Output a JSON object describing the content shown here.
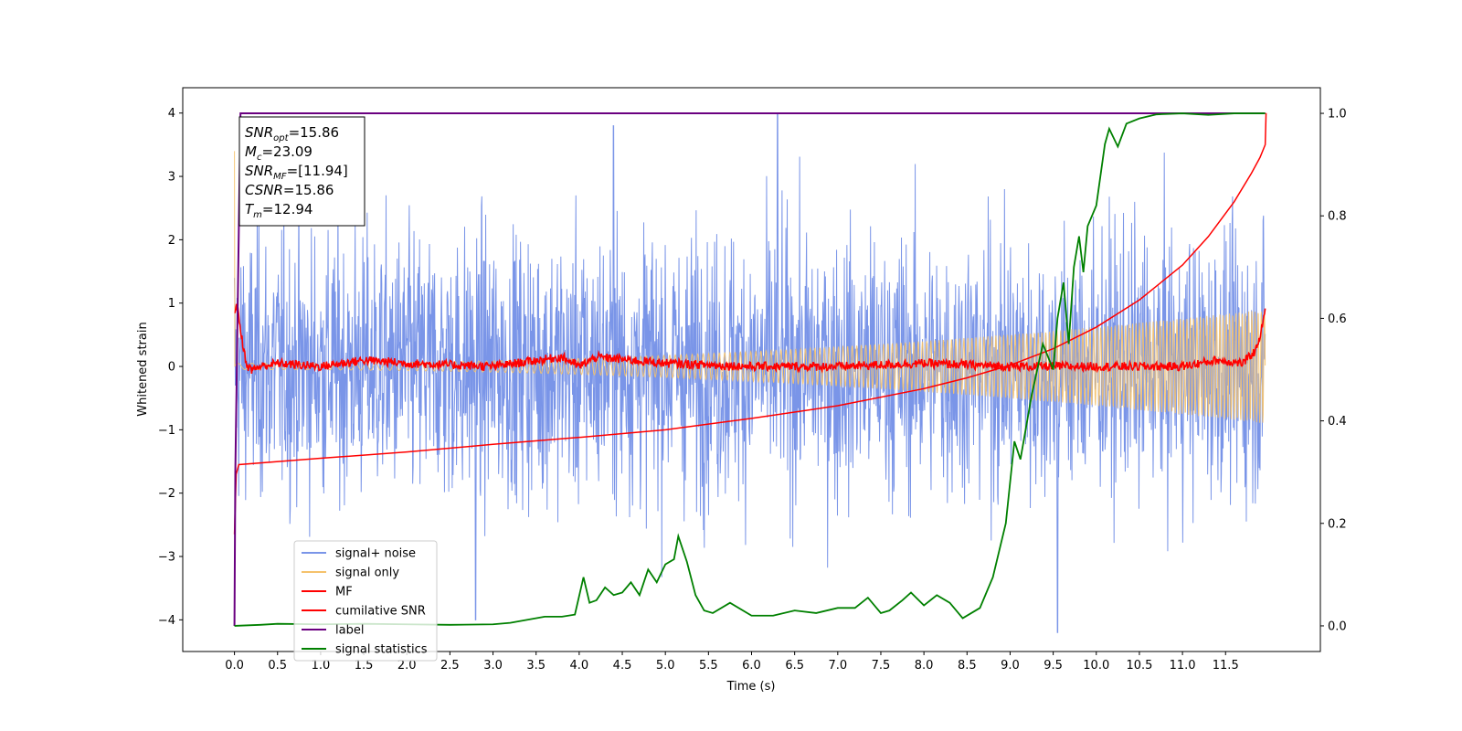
{
  "chart_data": {
    "type": "line",
    "xlabel": "Time (s)",
    "ylabel": "Whitened strain",
    "xlim": [
      -0.6,
      12.6
    ],
    "ylim": [
      -4.5,
      4.4
    ],
    "y2lim": [
      -0.05,
      1.05
    ],
    "x_ticks": [
      0.0,
      0.5,
      1.0,
      1.5,
      2.0,
      2.5,
      3.0,
      3.5,
      4.0,
      4.5,
      5.0,
      5.5,
      6.0,
      6.5,
      7.0,
      7.5,
      8.0,
      8.5,
      9.0,
      9.5,
      10.0,
      10.5,
      11.0,
      11.5
    ],
    "x_tick_labels": [
      "0.0",
      "0.5",
      "1.0",
      "1.5",
      "2.0",
      "2.5",
      "3.0",
      "3.5",
      "4.0",
      "4.5",
      "5.0",
      "5.5",
      "6.0",
      "6.5",
      "7.0",
      "7.5",
      "8.0",
      "8.5",
      "9.0",
      "9.5",
      "10.0",
      "10.5",
      "11.0",
      "11.5"
    ],
    "y_ticks": [
      -4,
      -3,
      -2,
      -1,
      0,
      1,
      2,
      3,
      4
    ],
    "y_tick_labels": [
      "−4",
      "−3",
      "−2",
      "−1",
      "0",
      "1",
      "2",
      "3",
      "4"
    ],
    "y2_ticks": [
      0.0,
      0.2,
      0.4,
      0.6,
      0.8,
      1.0
    ],
    "y2_tick_labels": [
      "0.0",
      "0.2",
      "0.4",
      "0.6",
      "0.8",
      "1.0"
    ],
    "legend": {
      "placement": "lower-left",
      "entries": [
        {
          "name": "signal+ noise",
          "color": "#7a95e8"
        },
        {
          "name": "signal only",
          "color": "#f5c26b"
        },
        {
          "name": "MF",
          "color": "#ff0000"
        },
        {
          "name": "cumilative SNR",
          "color": "#ff0000"
        },
        {
          "name": "label",
          "color": "#6a0080"
        },
        {
          "name": "signal statistics",
          "color": "#008000"
        }
      ]
    },
    "annotation": {
      "lines": [
        {
          "main": "SNR",
          "sub": "opt",
          "rest": "=15.86"
        },
        {
          "main": "M",
          "sub": "c",
          "rest": "=23.09"
        },
        {
          "main": "SNR",
          "sub": "MF",
          "rest": "=[11.94]"
        },
        {
          "main": "CSNR",
          "sub": "",
          "rest": "=15.86"
        },
        {
          "main": "T",
          "sub": "m",
          "rest": "=12.94"
        }
      ]
    },
    "series": [
      {
        "name": "signal+ noise",
        "axis": "left",
        "style": "noise",
        "x_range": [
          0.0,
          11.96
        ],
        "amplitude_envelope": 3.5,
        "peaks": [
          {
            "x": 4.4,
            "y": 3.8
          },
          {
            "x": 6.3,
            "y": 4.0
          },
          {
            "x": 9.55,
            "y": -4.2
          },
          {
            "x": 2.8,
            "y": -4.0
          }
        ]
      },
      {
        "name": "signal only",
        "axis": "left",
        "style": "chirp",
        "x_range": [
          0.0,
          11.96
        ],
        "start_spike": 3.4,
        "end_amplitude": 0.85
      },
      {
        "name": "MF",
        "axis": "left",
        "x": [
          0.0,
          0.03,
          0.06,
          0.1,
          0.15,
          0.2,
          0.3,
          0.5,
          1.0,
          1.5,
          2.0,
          3.0,
          3.8,
          4.0,
          4.2,
          5.0,
          6.0,
          7.0,
          8.0,
          9.0,
          10.0,
          11.0,
          11.4,
          11.7,
          11.85,
          11.92,
          11.96
        ],
        "y": [
          0.9,
          0.95,
          0.7,
          0.3,
          0.0,
          -0.05,
          0.0,
          0.05,
          0.0,
          0.1,
          0.05,
          0.0,
          0.15,
          0.0,
          0.15,
          0.05,
          0.0,
          0.0,
          0.05,
          0.0,
          0.0,
          0.0,
          0.1,
          0.05,
          0.25,
          0.6,
          0.95
        ]
      },
      {
        "name": "cumilative SNR",
        "axis": "left",
        "x": [
          0.0,
          0.02,
          0.05,
          1.0,
          2.0,
          3.0,
          4.0,
          5.0,
          6.0,
          7.0,
          8.0,
          8.5,
          9.0,
          9.5,
          10.0,
          10.5,
          11.0,
          11.3,
          11.6,
          11.8,
          11.9,
          11.96,
          11.97
        ],
        "y": [
          -2.65,
          -1.7,
          -1.55,
          -1.45,
          -1.35,
          -1.23,
          -1.12,
          -1.0,
          -0.82,
          -0.62,
          -0.35,
          -0.18,
          0.02,
          0.28,
          0.62,
          1.05,
          1.6,
          2.05,
          2.6,
          3.05,
          3.3,
          3.5,
          4.0
        ]
      },
      {
        "name": "label",
        "axis": "right",
        "x": [
          0.0,
          0.01,
          0.07,
          11.96
        ],
        "y": [
          0.0,
          0.3,
          1.0,
          1.0
        ]
      },
      {
        "name": "signal statistics",
        "axis": "right",
        "x": [
          0.0,
          0.3,
          0.5,
          1.0,
          1.5,
          2.0,
          2.5,
          3.0,
          3.2,
          3.4,
          3.6,
          3.8,
          3.95,
          4.05,
          4.12,
          4.2,
          4.3,
          4.4,
          4.5,
          4.6,
          4.7,
          4.8,
          4.9,
          5.0,
          5.1,
          5.15,
          5.25,
          5.35,
          5.45,
          5.55,
          5.75,
          6.0,
          6.25,
          6.5,
          6.75,
          7.0,
          7.2,
          7.35,
          7.5,
          7.6,
          7.75,
          7.85,
          8.0,
          8.15,
          8.3,
          8.45,
          8.55,
          8.65,
          8.8,
          8.95,
          9.05,
          9.12,
          9.25,
          9.38,
          9.5,
          9.55,
          9.62,
          9.68,
          9.74,
          9.8,
          9.85,
          9.9,
          10.0,
          10.1,
          10.15,
          10.25,
          10.35,
          10.5,
          10.7,
          11.0,
          11.3,
          11.6,
          11.96
        ],
        "y": [
          0.0,
          0.002,
          0.004,
          0.003,
          0.004,
          0.003,
          0.002,
          0.003,
          0.006,
          0.012,
          0.018,
          0.018,
          0.022,
          0.095,
          0.045,
          0.05,
          0.075,
          0.06,
          0.065,
          0.085,
          0.06,
          0.11,
          0.085,
          0.12,
          0.13,
          0.175,
          0.125,
          0.06,
          0.03,
          0.025,
          0.045,
          0.02,
          0.02,
          0.03,
          0.025,
          0.035,
          0.035,
          0.055,
          0.025,
          0.03,
          0.05,
          0.065,
          0.04,
          0.06,
          0.045,
          0.015,
          0.025,
          0.035,
          0.095,
          0.2,
          0.36,
          0.325,
          0.45,
          0.55,
          0.5,
          0.6,
          0.67,
          0.55,
          0.7,
          0.76,
          0.69,
          0.78,
          0.82,
          0.94,
          0.97,
          0.935,
          0.98,
          0.99,
          0.998,
          1.0,
          0.997,
          1.0,
          1.0
        ]
      }
    ]
  }
}
